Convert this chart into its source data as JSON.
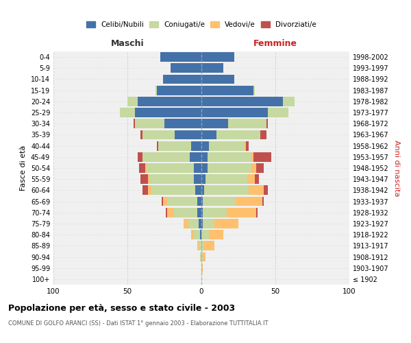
{
  "age_groups": [
    "100+",
    "95-99",
    "90-94",
    "85-89",
    "80-84",
    "75-79",
    "70-74",
    "65-69",
    "60-64",
    "55-59",
    "50-54",
    "45-49",
    "40-44",
    "35-39",
    "30-34",
    "25-29",
    "20-24",
    "15-19",
    "10-14",
    "5-9",
    "0-4"
  ],
  "birth_years": [
    "≤ 1902",
    "1903-1907",
    "1908-1912",
    "1913-1917",
    "1918-1922",
    "1923-1927",
    "1928-1932",
    "1933-1937",
    "1938-1942",
    "1943-1947",
    "1948-1952",
    "1953-1957",
    "1958-1962",
    "1963-1967",
    "1968-1972",
    "1973-1977",
    "1978-1982",
    "1983-1987",
    "1988-1992",
    "1993-1997",
    "1998-2002"
  ],
  "maschi": {
    "celibi": [
      0,
      0,
      0,
      0,
      1,
      2,
      3,
      3,
      4,
      5,
      5,
      8,
      7,
      18,
      25,
      45,
      43,
      30,
      26,
      21,
      28
    ],
    "coniugati": [
      0,
      0,
      1,
      2,
      4,
      7,
      16,
      20,
      30,
      30,
      32,
      32,
      22,
      22,
      20,
      10,
      7,
      1,
      0,
      0,
      0
    ],
    "vedovi": [
      0,
      0,
      0,
      1,
      2,
      3,
      4,
      3,
      2,
      1,
      1,
      0,
      0,
      0,
      0,
      0,
      0,
      0,
      0,
      0,
      0
    ],
    "divorziati": [
      0,
      0,
      0,
      0,
      0,
      0,
      1,
      1,
      4,
      5,
      4,
      3,
      1,
      1,
      1,
      0,
      0,
      0,
      0,
      0,
      0
    ]
  },
  "femmine": {
    "nubili": [
      0,
      0,
      0,
      0,
      0,
      1,
      1,
      1,
      2,
      3,
      4,
      4,
      5,
      10,
      18,
      45,
      55,
      35,
      22,
      15,
      22
    ],
    "coniugate": [
      0,
      0,
      1,
      2,
      5,
      8,
      16,
      22,
      30,
      28,
      30,
      30,
      24,
      30,
      26,
      14,
      8,
      1,
      0,
      0,
      0
    ],
    "vedove": [
      0,
      1,
      2,
      7,
      10,
      16,
      20,
      18,
      10,
      5,
      3,
      1,
      1,
      0,
      0,
      0,
      0,
      0,
      0,
      0,
      0
    ],
    "divorziate": [
      0,
      0,
      0,
      0,
      0,
      0,
      1,
      1,
      3,
      3,
      5,
      12,
      2,
      4,
      1,
      0,
      0,
      0,
      0,
      0,
      0
    ]
  },
  "colors": {
    "celibi": "#4472a8",
    "coniugati": "#c6d9a0",
    "vedovi": "#ffc06e",
    "divorziati": "#c0504d"
  },
  "title": "Popolazione per età, sesso e stato civile - 2003",
  "subtitle": "COMUNE DI GOLFO ARANCI (SS) - Dati ISTAT 1° gennaio 2003 - Elaborazione TUTTITALIA.IT",
  "ylabel_left": "Fasce di età",
  "ylabel_right": "Anni di nascita",
  "xlim": 100,
  "bg_color": "#f0f0f0",
  "grid_color": "#cccccc",
  "maschi_label": "Maschi",
  "femmine_label": "Femmine",
  "legend_labels": [
    "Celibi/Nubili",
    "Coniugati/e",
    "Vedovi/e",
    "Divorziati/e"
  ]
}
